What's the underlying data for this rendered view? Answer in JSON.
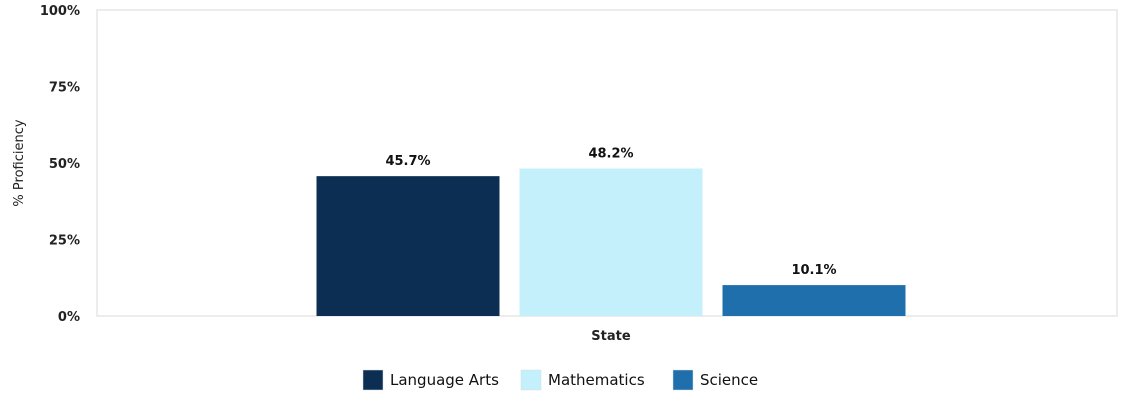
{
  "chart_data": {
    "type": "bar",
    "categories": [
      "State"
    ],
    "series": [
      {
        "name": "Language Arts",
        "values": [
          45.7
        ],
        "label": "45.7%",
        "color": "#0b2e52"
      },
      {
        "name": "Mathematics",
        "values": [
          48.2
        ],
        "label": "48.2%",
        "color": "#c4f0fb"
      },
      {
        "name": "Science",
        "values": [
          10.1
        ],
        "label": "10.1%",
        "color": "#1f6fad"
      }
    ],
    "title": "",
    "xlabel": "",
    "ylabel": "% Proficiency",
    "ylim": [
      0,
      100
    ],
    "yticks": [
      0,
      25,
      50,
      75,
      100
    ],
    "ytick_labels": [
      "0%",
      "25%",
      "50%",
      "75%",
      "100%"
    ],
    "grid": false,
    "legend": "bottom-center",
    "plot_border_color": "#e6e6e6"
  }
}
